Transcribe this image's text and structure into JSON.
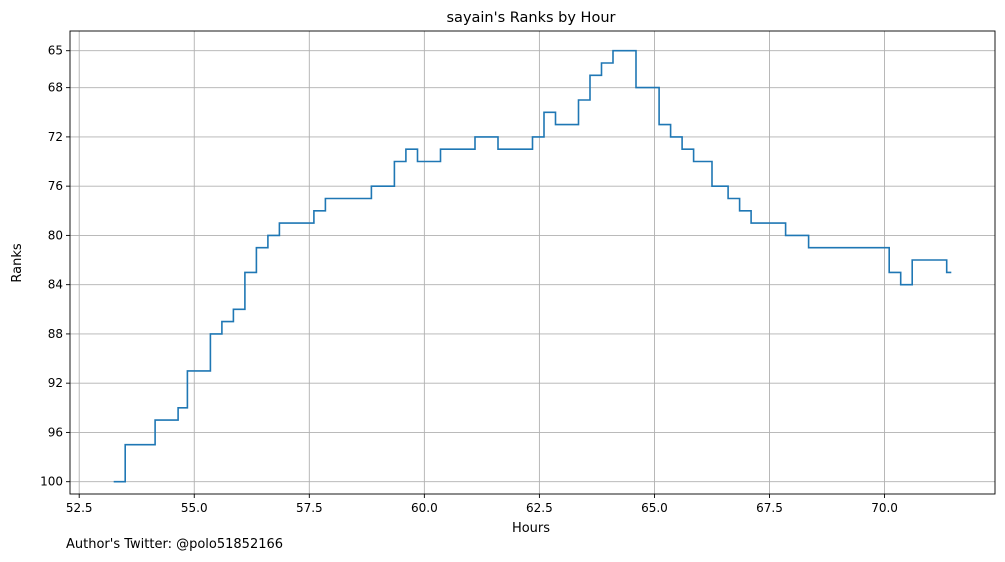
{
  "chart_data": {
    "type": "line",
    "title": "sayain's Ranks by Hour",
    "xlabel": "Hours",
    "ylabel": "Ranks",
    "xlim": [
      52.3,
      72.4
    ],
    "ylim": [
      101,
      63.4
    ],
    "y_inverted": true,
    "x_ticks": [
      52.5,
      55.0,
      57.5,
      60.0,
      62.5,
      65.0,
      67.5,
      70.0
    ],
    "x_tick_labels": [
      "52.5",
      "55.0",
      "57.5",
      "60.0",
      "62.5",
      "65.0",
      "67.5",
      "70.0"
    ],
    "y_ticks": [
      65,
      68,
      72,
      76,
      80,
      84,
      88,
      92,
      96,
      100
    ],
    "y_tick_labels": [
      "65",
      "68",
      "72",
      "76",
      "80",
      "84",
      "88",
      "92",
      "96",
      "100"
    ],
    "grid": true,
    "line_color": "#1f77b4",
    "step": "post",
    "series": [
      {
        "x": [
          53.25,
          53.5,
          54.15,
          54.65,
          54.85,
          55.35,
          55.6,
          55.85,
          56.1,
          56.35,
          56.6,
          56.85,
          57.6,
          57.85,
          58.85,
          59.35,
          59.6,
          59.85,
          60.35,
          61.1,
          61.6,
          62.35,
          62.6,
          62.85,
          63.35,
          63.6,
          63.85,
          64.1,
          64.6,
          65.1,
          65.35,
          65.6,
          65.85,
          66.25,
          66.6,
          66.85,
          67.1,
          67.85,
          68.35,
          70.1,
          70.35,
          70.6,
          71.35,
          71.45
        ],
        "y": [
          100,
          97,
          95,
          94,
          91,
          88,
          87,
          86,
          83,
          81,
          80,
          79,
          78,
          77,
          76,
          74,
          73,
          74,
          73,
          72,
          73,
          72,
          70,
          71,
          69,
          67,
          66,
          65,
          68,
          71,
          72,
          73,
          74,
          76,
          77,
          78,
          79,
          80,
          81,
          83,
          84,
          82,
          83,
          83
        ]
      }
    ]
  },
  "footer": {
    "text": "Author's Twitter: @polo51852166"
  }
}
